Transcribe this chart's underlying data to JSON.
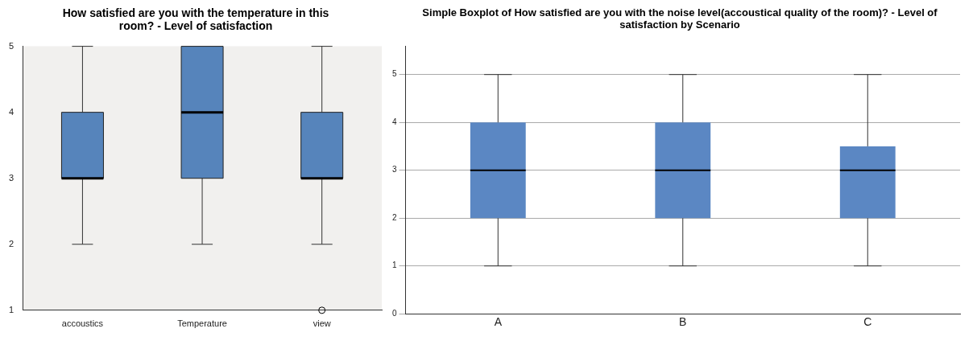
{
  "chart_data": [
    {
      "type": "box",
      "title": "How satisfied are you with the temperature in this room? - Level of satisfaction",
      "categories": [
        "accoustics",
        "Temperature",
        "view"
      ],
      "color": "#5684bb",
      "ylim": [
        1,
        5
      ],
      "yticks": [
        1,
        2,
        3,
        4,
        5
      ],
      "grid": false,
      "boxes": [
        {
          "low": 2,
          "q1": 3,
          "median": 3,
          "q3": 4,
          "high": 5
        },
        {
          "low": 2,
          "q1": 3,
          "median": 4,
          "q3": 5,
          "high": 5
        },
        {
          "low": 2,
          "q1": 3,
          "median": 3,
          "q3": 4,
          "high": 5,
          "outliers": [
            1
          ]
        }
      ]
    },
    {
      "type": "box",
      "title": "Simple Boxplot of How satisfied are you with the noise level(accoustical quality of the room)? - Level of satisfaction by Scenario",
      "categories": [
        "A",
        "B",
        "C"
      ],
      "color": "#5b87c3",
      "ylim": [
        0,
        5.6
      ],
      "yticks": [
        0,
        1,
        2,
        3,
        4,
        5
      ],
      "grid": "y",
      "boxes": [
        {
          "low": 1,
          "q1": 2,
          "median": 3,
          "q3": 4,
          "high": 5
        },
        {
          "low": 1,
          "q1": 2,
          "median": 3,
          "q3": 4,
          "high": 5
        },
        {
          "low": 1,
          "q1": 2,
          "median": 3,
          "q3": 3.5,
          "high": 5
        }
      ]
    }
  ]
}
